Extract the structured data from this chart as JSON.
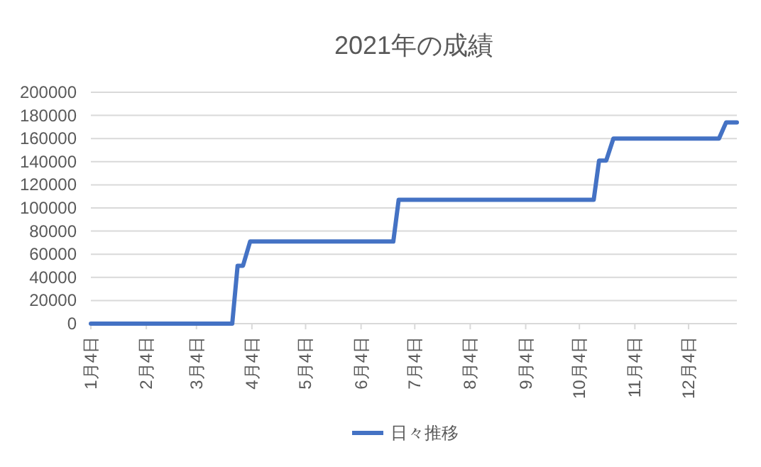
{
  "chart_data": {
    "type": "line",
    "title": "2021年の成績",
    "x": [
      "2021-01-04",
      "2021-03-24",
      "2021-03-27",
      "2021-03-30",
      "2021-04-03",
      "2021-06-22",
      "2021-06-25",
      "2021-10-12",
      "2021-10-15",
      "2021-10-19",
      "2021-10-23",
      "2021-12-21",
      "2021-12-25",
      "2021-12-31"
    ],
    "series": [
      {
        "name": "日々推移",
        "color": "#4472c4",
        "values": [
          0,
          0,
          50000,
          50000,
          71000,
          71000,
          107000,
          107000,
          141000,
          141000,
          160000,
          160000,
          174000,
          174000
        ]
      }
    ],
    "xlim": [
      "2021-01-04",
      "2021-12-31"
    ],
    "xticks": [
      {
        "value": "2021-01-04",
        "label": "1月4日"
      },
      {
        "value": "2021-02-04",
        "label": "2月4日"
      },
      {
        "value": "2021-03-04",
        "label": "3月4日"
      },
      {
        "value": "2021-04-04",
        "label": "4月4日"
      },
      {
        "value": "2021-05-04",
        "label": "5月4日"
      },
      {
        "value": "2021-06-04",
        "label": "6月4日"
      },
      {
        "value": "2021-07-04",
        "label": "7月4日"
      },
      {
        "value": "2021-08-04",
        "label": "8月4日"
      },
      {
        "value": "2021-09-04",
        "label": "9月4日"
      },
      {
        "value": "2021-10-04",
        "label": "10月4日"
      },
      {
        "value": "2021-11-04",
        "label": "11月4日"
      },
      {
        "value": "2021-12-04",
        "label": "12月4日"
      }
    ],
    "ylim": [
      0,
      200000
    ],
    "yticks": [
      0,
      20000,
      40000,
      60000,
      80000,
      100000,
      120000,
      140000,
      160000,
      180000,
      200000
    ],
    "grid": "y",
    "legend": "bottom",
    "marker": "none",
    "line_style": "solid"
  }
}
